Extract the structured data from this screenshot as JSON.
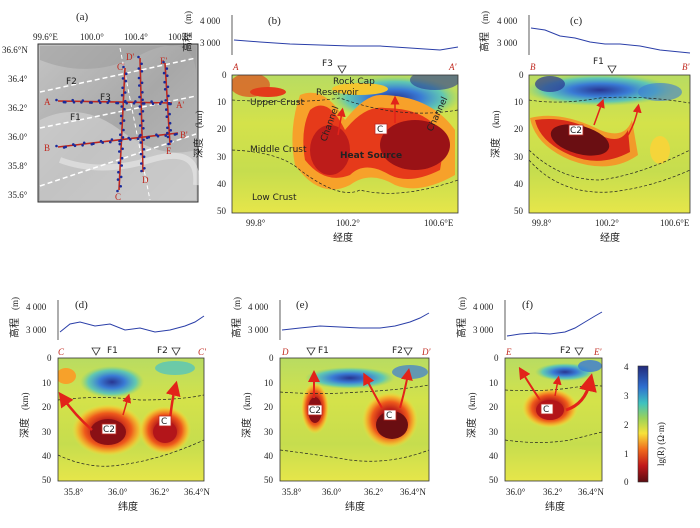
{
  "panels": {
    "a": {
      "label": "(a)",
      "lon_ticks": [
        "99.6°E",
        "100.0°",
        "100.4°",
        "100.8°"
      ],
      "lat_ticks": [
        "36.6°N",
        "36.4°",
        "36.2°",
        "36.0°",
        "35.8°",
        "35.6°"
      ],
      "faults": [
        "F2",
        "F3",
        "F1"
      ],
      "profiles": [
        "A",
        "A'",
        "B",
        "B'",
        "C",
        "C'",
        "D",
        "D'",
        "E",
        "E'"
      ]
    },
    "b": {
      "label": "(b)",
      "ends": [
        "A",
        "A'"
      ],
      "fault": "F3",
      "x_ticks": [
        "99.8°",
        "100.2°",
        "100.6°E"
      ],
      "xlabel": "经度",
      "annotations": [
        "Rock Cap",
        "Reservoir",
        "Upper Crust",
        "Middle Crust",
        "Low Crust",
        "Channel",
        "Channel",
        "Heat Source",
        "C"
      ]
    },
    "c": {
      "label": "(c)",
      "ends": [
        "B",
        "B'"
      ],
      "fault": "F1",
      "x_ticks": [
        "99.8°",
        "100.2°",
        "100.6°E"
      ],
      "xlabel": "经度",
      "annotations": [
        "C2"
      ]
    },
    "d": {
      "label": "(d)",
      "ends": [
        "C",
        "C'"
      ],
      "faults": [
        "F1",
        "F2"
      ],
      "x_ticks": [
        "35.8°",
        "36.0°",
        "36.2°",
        "36.4°N"
      ],
      "xlabel": "纬度",
      "annotations": [
        "C2",
        "C"
      ]
    },
    "e": {
      "label": "(e)",
      "ends": [
        "D",
        "D'"
      ],
      "faults": [
        "F1",
        "F2"
      ],
      "x_ticks": [
        "35.8°",
        "36.0°",
        "36.2°",
        "36.4°N"
      ],
      "xlabel": "纬度",
      "annotations": [
        "C2",
        "C"
      ]
    },
    "f": {
      "label": "(f)",
      "ends": [
        "E",
        "E'"
      ],
      "fault": "F2",
      "x_ticks": [
        "36.0°",
        "36.2°",
        "36.4°N"
      ],
      "xlabel": "纬度",
      "annotations": [
        "C"
      ]
    }
  },
  "elev_axis": {
    "label": "高程",
    "unit": "(m)",
    "ticks": [
      "4 000",
      "3 000"
    ]
  },
  "depth_axis": {
    "label": "深度",
    "unit": "(km)",
    "ticks": [
      "0",
      "10",
      "20",
      "30",
      "40",
      "50"
    ]
  },
  "colorbar": {
    "label": "lg(R) (Ω·m)",
    "ticks": [
      "4",
      "3",
      "2",
      "1",
      "0"
    ]
  },
  "colors": {
    "profile_red": "#c0281e",
    "elevation_line": "#2a3ea8",
    "station_blue": "#1a2a9a"
  }
}
